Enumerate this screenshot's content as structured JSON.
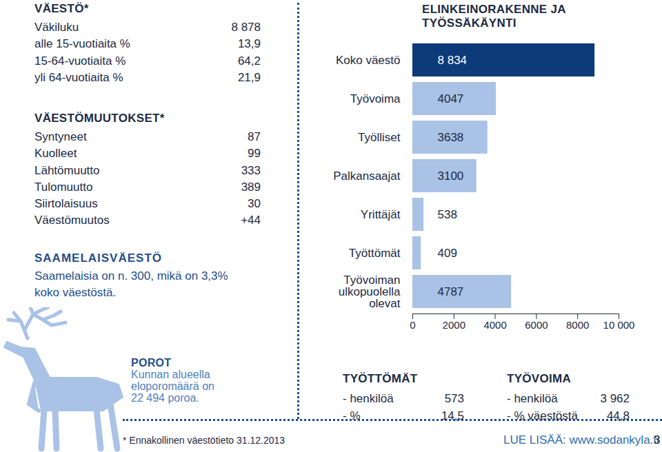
{
  "chart_data": {
    "type": "bar",
    "orientation": "horizontal",
    "title": "ELINKEINORAKENNE JA TYÖSSÄKÄYNTI",
    "categories": [
      "Koko väestö",
      "Työvoima",
      "Työlliset",
      "Palkansaajat",
      "Yrittäjät",
      "Työttömät",
      "Työvoiman ulkopuolella olevat"
    ],
    "values": [
      8834,
      4047,
      3638,
      3100,
      538,
      409,
      4787
    ],
    "value_labels": [
      "8 834",
      "4047",
      "3638",
      "3100",
      "538",
      "409",
      "4787"
    ],
    "colors": [
      "#0d3a78",
      "#a9c2e6",
      "#a9c2e6",
      "#a9c2e6",
      "#a9c2e6",
      "#a9c2e6",
      "#a9c2e6"
    ],
    "data_labels": true,
    "xlim": [
      0,
      10000
    ],
    "xticks": [
      0,
      2000,
      4000,
      6000,
      8000,
      {
        "value": 10000,
        "label": "10 000"
      }
    ],
    "grid": false
  },
  "vaesto": {
    "title": "VÄESTÖ*",
    "rows": [
      [
        "Väkiluku",
        "8 878"
      ],
      [
        "alle 15-vuotiaita %",
        "13,9"
      ],
      [
        "15-64-vuotiaita %",
        "64,2"
      ],
      [
        "yli 64-vuotiaita %",
        "21,9"
      ]
    ]
  },
  "vaestomuutokset": {
    "title": "VÄESTÖMUUTOKSET*",
    "rows": [
      [
        "Syntyneet",
        "87"
      ],
      [
        "Kuolleet",
        "99"
      ],
      [
        "Lähtömuutto",
        "333"
      ],
      [
        "Tulomuutto",
        "389"
      ],
      [
        "Siirtolaisuus",
        "30"
      ],
      [
        "Väestömuutos",
        "+44"
      ]
    ]
  },
  "saamelaisvaesto": {
    "title": "SAAMELAISVÄESTÖ",
    "text": [
      "Saamelaisia on n. 300, mikä on 3,3%",
      "koko väestöstä."
    ]
  },
  "porot": {
    "title": "POROT",
    "text": [
      "Kunnan alueella",
      "eloporomäärä on",
      "22 494 poroa."
    ]
  },
  "tyottomat": {
    "title": "TYÖTTÖMÄT",
    "rows": [
      [
        "- henkilöä",
        "573"
      ],
      [
        "- %",
        "14,5"
      ]
    ]
  },
  "tyovoima": {
    "title": "TYÖVOIMA",
    "rows": [
      [
        "- henkilöä",
        "3 962"
      ],
      [
        "- % väestöstä",
        "44,8"
      ]
    ]
  },
  "footnote": "* Ennakollinen väestötieto 31.12.2013",
  "link": "LUE LISÄÄ: www.sodankyla.fi",
  "page": "3"
}
